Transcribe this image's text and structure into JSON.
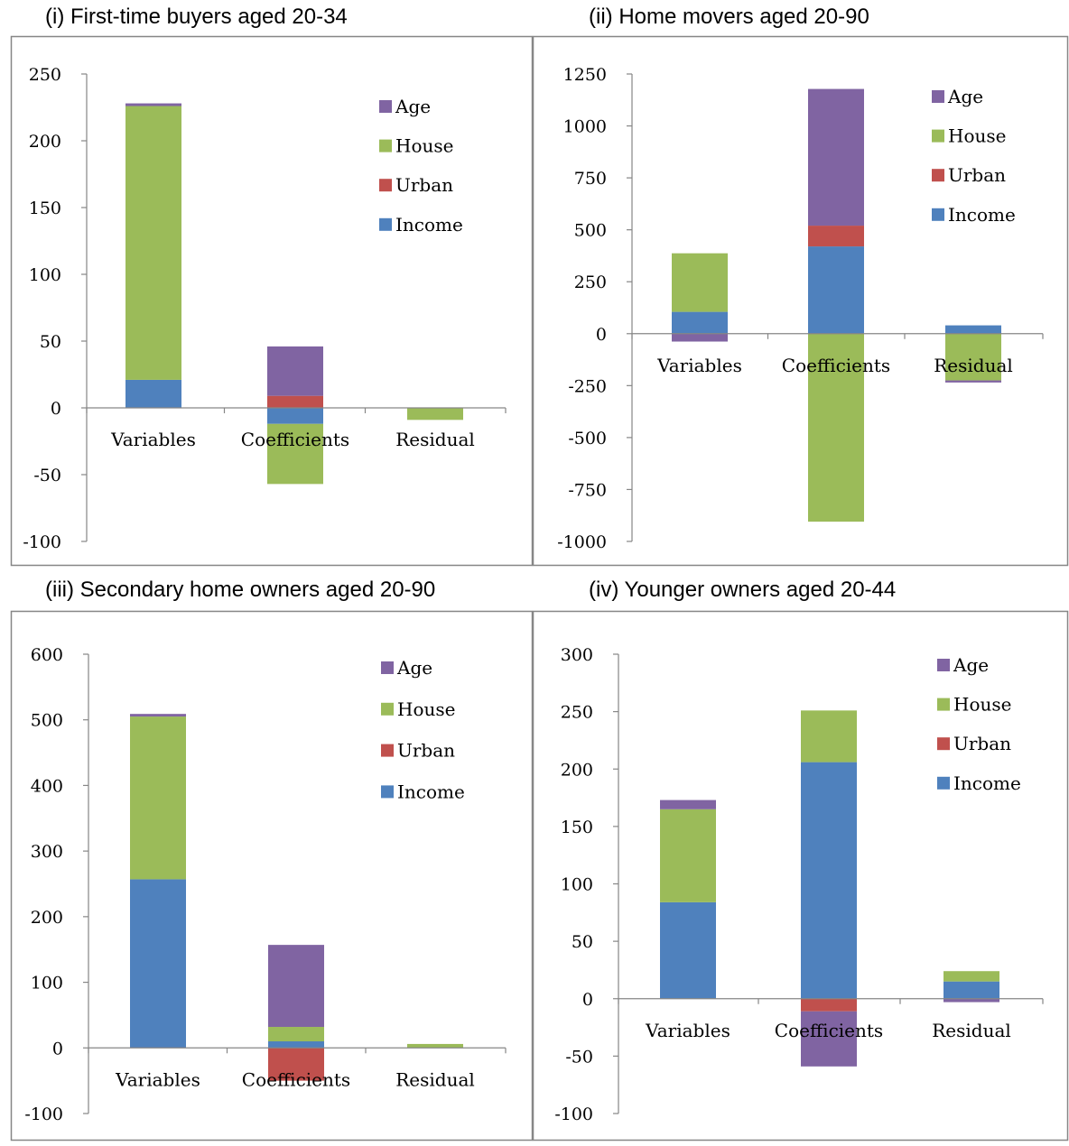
{
  "colors": {
    "Age": "#8064a2",
    "House": "#9bbb59",
    "Urban": "#c0504d",
    "Income": "#4f81bd",
    "axis": "#868686",
    "frame": "#868686"
  },
  "chart_data": [
    {
      "type": "bar",
      "stacked": true,
      "title": "(i) First-time buyers aged 20-34",
      "categories": [
        "Variables",
        "Coefficients",
        "Residual"
      ],
      "legend": [
        "Age",
        "House",
        "Urban",
        "Income"
      ],
      "legend_position": "right",
      "ylim": [
        -100,
        250
      ],
      "yticks": [
        "250",
        "200",
        "150",
        "100",
        "50",
        "0",
        "-50",
        "-100"
      ],
      "ytick_values": [
        250,
        200,
        150,
        100,
        50,
        0,
        -50,
        -100
      ],
      "series": [
        {
          "name": "Income",
          "values": [
            21,
            -12,
            0
          ]
        },
        {
          "name": "Urban",
          "values": [
            0,
            9,
            0
          ]
        },
        {
          "name": "House",
          "values": [
            205,
            -45,
            -9
          ]
        },
        {
          "name": "Age",
          "values": [
            2,
            37,
            0
          ]
        }
      ]
    },
    {
      "type": "bar",
      "stacked": true,
      "title": "(ii) Home movers aged 20-90",
      "categories": [
        "Variables",
        "Coefficients",
        "Residual"
      ],
      "legend": [
        "Age",
        "House",
        "Urban",
        "Income"
      ],
      "legend_position": "right",
      "ylim": [
        -1000,
        1250
      ],
      "yticks": [
        "1250",
        "1000",
        "750",
        "500",
        "250",
        "0",
        "-250",
        "-500",
        "-750",
        "-1000"
      ],
      "ytick_values": [
        1250,
        1000,
        750,
        500,
        250,
        0,
        -250,
        -500,
        -750,
        -1000
      ],
      "series": [
        {
          "name": "Income",
          "values": [
            105,
            420,
            40
          ]
        },
        {
          "name": "Urban",
          "values": [
            0,
            100,
            0
          ]
        },
        {
          "name": "House",
          "values": [
            282,
            -905,
            -225
          ]
        },
        {
          "name": "Age",
          "values": [
            -38,
            658,
            -10
          ]
        }
      ]
    },
    {
      "type": "bar",
      "stacked": true,
      "title": "(iii) Secondary home owners aged 20-90",
      "categories": [
        "Variables",
        "Coefficients",
        "Residual"
      ],
      "legend": [
        "Age",
        "House",
        "Urban",
        "Income"
      ],
      "legend_position": "right",
      "ylim": [
        -100,
        600
      ],
      "yticks": [
        "600",
        "500",
        "400",
        "300",
        "200",
        "100",
        "0",
        "-100"
      ],
      "ytick_values": [
        600,
        500,
        400,
        300,
        200,
        100,
        0,
        -100
      ],
      "series": [
        {
          "name": "Income",
          "values": [
            257,
            10,
            0
          ]
        },
        {
          "name": "Urban",
          "values": [
            0,
            -50,
            0
          ]
        },
        {
          "name": "House",
          "values": [
            248,
            22,
            6
          ]
        },
        {
          "name": "Age",
          "values": [
            4,
            125,
            0
          ]
        }
      ]
    },
    {
      "type": "bar",
      "stacked": true,
      "title": "(iv) Younger owners aged 20-44",
      "categories": [
        "Variables",
        "Coefficients",
        "Residual"
      ],
      "legend": [
        "Age",
        "House",
        "Urban",
        "Income"
      ],
      "legend_position": "right",
      "ylim": [
        -100,
        300
      ],
      "yticks": [
        "300",
        "250",
        "200",
        "150",
        "100",
        "50",
        "0",
        "-50",
        "-100"
      ],
      "ytick_values": [
        300,
        250,
        200,
        150,
        100,
        50,
        0,
        -50,
        -100
      ],
      "series": [
        {
          "name": "Income",
          "values": [
            84,
            206,
            15
          ]
        },
        {
          "name": "Urban",
          "values": [
            0,
            -11,
            0
          ]
        },
        {
          "name": "House",
          "values": [
            81,
            45,
            9
          ]
        },
        {
          "name": "Age",
          "values": [
            8,
            -48,
            -3
          ]
        }
      ]
    }
  ]
}
